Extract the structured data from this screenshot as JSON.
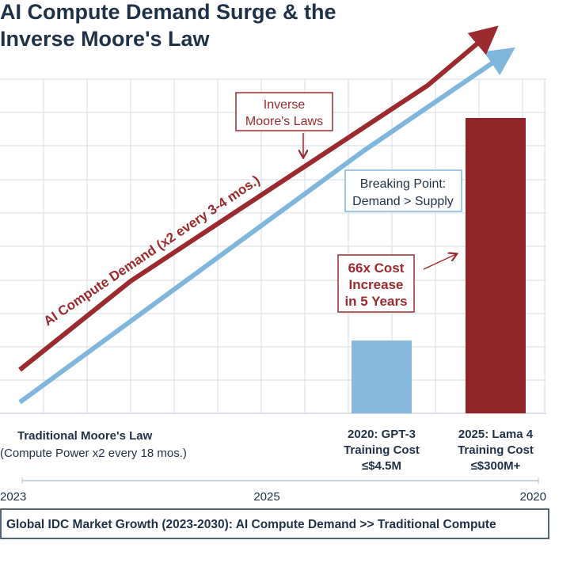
{
  "title": [
    "AI Compute Demand Surge & the",
    "Inverse Moore's Law"
  ],
  "demand_label": "AI Compute Demand (x2 every 3-4 mos.)",
  "inverse_box": [
    "Inverse",
    "Moore's Laws"
  ],
  "breaking_box": [
    "Breaking Point:",
    "Demand > Supply"
  ],
  "cost_box": [
    "66x Cost",
    "Increase",
    "in 5 Years"
  ],
  "moore_label": [
    "Traditional Moore's Law",
    "(Compute Power x2 every 18 mos.)"
  ],
  "bars": [
    {
      "label": [
        "2020: GPT-3",
        "Training Cost",
        "≤$4.5M"
      ]
    },
    {
      "label": [
        "2025: Lama 4",
        "Training Cost",
        "≤$300M+"
      ]
    }
  ],
  "axis_labels": [
    "2023",
    "2025",
    "2020"
  ],
  "footer": "Global IDC Market Growth (2023-2030): AI Compute Demand >> Traditional Compute"
}
